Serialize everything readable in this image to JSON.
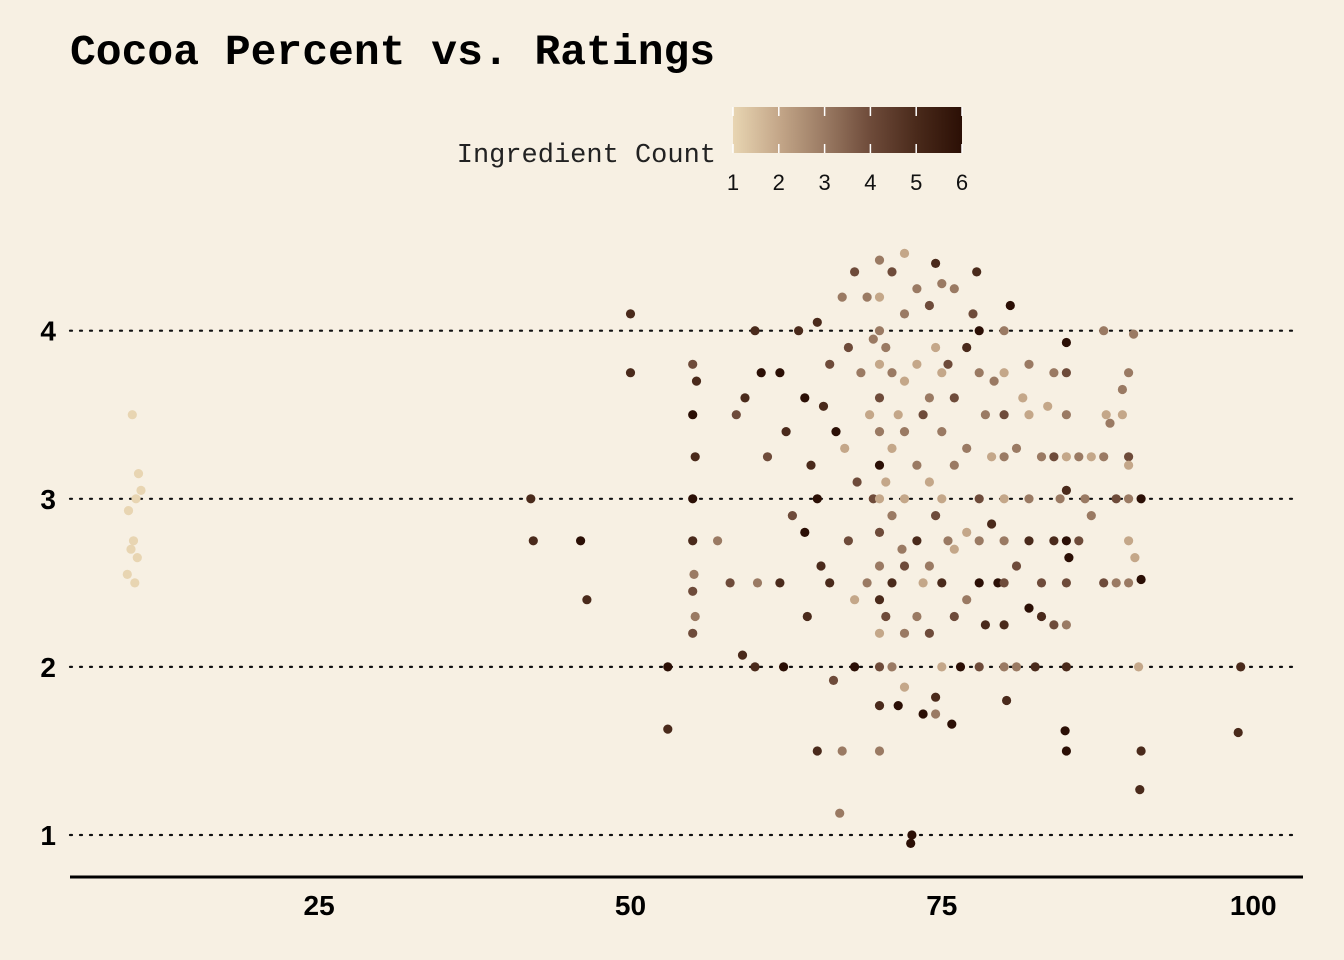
{
  "chart_data": {
    "type": "scatter",
    "title": "Cocoa Percent vs. Ratings",
    "xlabel": "",
    "ylabel": "",
    "xlim": [
      5,
      104
    ],
    "ylim": [
      0.78,
      4.48
    ],
    "x_ticks": [
      25,
      50,
      75,
      100
    ],
    "y_ticks": [
      1,
      2,
      3,
      4
    ],
    "grid": {
      "horizontal": "dotted",
      "vertical": "none"
    },
    "legend": {
      "title": "Ingredient Count",
      "position": "top",
      "type": "colorbar",
      "range": [
        1,
        6
      ],
      "ticks": [
        1,
        2,
        3,
        4,
        5,
        6
      ],
      "colors": [
        "#e8d5b2",
        "#c4a789",
        "#9a7a63",
        "#6e4b3a",
        "#4a2a1b",
        "#2b0f05"
      ]
    },
    "clusters_note": "jittered points; x = cocoa percent, y = rating, color = ingredient count",
    "series": [
      {
        "points": [
          [
            10,
            3.5,
            1
          ],
          [
            10.5,
            3.15,
            1
          ],
          [
            10.7,
            3.05,
            1
          ],
          [
            10.3,
            3.0,
            1
          ],
          [
            9.7,
            2.93,
            1
          ],
          [
            10.1,
            2.75,
            1
          ],
          [
            9.9,
            2.7,
            1
          ],
          [
            10.4,
            2.65,
            1
          ],
          [
            9.6,
            2.55,
            1
          ],
          [
            10.2,
            2.5,
            1
          ],
          [
            42,
            3.0,
            5
          ],
          [
            42.2,
            2.75,
            5
          ],
          [
            46,
            2.75,
            6
          ],
          [
            46.5,
            2.4,
            5
          ],
          [
            50,
            4.1,
            5
          ],
          [
            50,
            3.75,
            5
          ],
          [
            53,
            2.0,
            6
          ],
          [
            53,
            1.63,
            5
          ],
          [
            55,
            3.8,
            4
          ],
          [
            55.3,
            3.7,
            5
          ],
          [
            55,
            3.5,
            6
          ],
          [
            55.2,
            3.25,
            5
          ],
          [
            55,
            3.0,
            6
          ],
          [
            55,
            2.75,
            5
          ],
          [
            55.1,
            2.55,
            3
          ],
          [
            55,
            2.45,
            4
          ],
          [
            55.2,
            2.3,
            3
          ],
          [
            55,
            2.2,
            4
          ],
          [
            57,
            2.75,
            3
          ],
          [
            58,
            2.5,
            4
          ],
          [
            59,
            2.07,
            5
          ],
          [
            58.5,
            3.5,
            4
          ],
          [
            59.2,
            3.6,
            5
          ],
          [
            60,
            4.0,
            5
          ],
          [
            60.5,
            3.75,
            6
          ],
          [
            61,
            3.25,
            4
          ],
          [
            60.2,
            2.5,
            3
          ],
          [
            60,
            2.0,
            5
          ],
          [
            62,
            3.75,
            6
          ],
          [
            62.5,
            3.4,
            5
          ],
          [
            63,
            2.9,
            4
          ],
          [
            62,
            2.5,
            5
          ],
          [
            62.3,
            2.0,
            6
          ],
          [
            63.5,
            4.0,
            5
          ],
          [
            64,
            3.6,
            6
          ],
          [
            64.5,
            3.2,
            5
          ],
          [
            64,
            2.8,
            6
          ],
          [
            64.2,
            2.3,
            5
          ],
          [
            65,
            4.05,
            5
          ],
          [
            65.5,
            3.55,
            5
          ],
          [
            65,
            3.0,
            6
          ],
          [
            65.3,
            2.6,
            5
          ],
          [
            65,
            1.5,
            5
          ],
          [
            66,
            3.8,
            4
          ],
          [
            66.5,
            3.4,
            6
          ],
          [
            66,
            2.5,
            5
          ],
          [
            66.3,
            1.92,
            4
          ],
          [
            66.8,
            1.13,
            3
          ],
          [
            67,
            1.5,
            3
          ],
          [
            67,
            4.2,
            3
          ],
          [
            67.5,
            3.9,
            4
          ],
          [
            67.2,
            3.3,
            2
          ],
          [
            67.5,
            2.75,
            4
          ],
          [
            68,
            4.35,
            4
          ],
          [
            68.5,
            3.75,
            3
          ],
          [
            68.2,
            3.1,
            4
          ],
          [
            68,
            2.4,
            2
          ],
          [
            68,
            2.0,
            6
          ],
          [
            69,
            4.2,
            3
          ],
          [
            69.5,
            3.95,
            3
          ],
          [
            69.2,
            3.5,
            2
          ],
          [
            69.5,
            3.0,
            4
          ],
          [
            69,
            2.5,
            3
          ],
          [
            70,
            4.42,
            3
          ],
          [
            70,
            4.2,
            2
          ],
          [
            70,
            4.0,
            3
          ],
          [
            70,
            3.8,
            2
          ],
          [
            70,
            3.6,
            4
          ],
          [
            70,
            3.4,
            3
          ],
          [
            70,
            3.2,
            6
          ],
          [
            70,
            3.0,
            2
          ],
          [
            70,
            2.8,
            4
          ],
          [
            70,
            2.6,
            3
          ],
          [
            70,
            2.4,
            5
          ],
          [
            70,
            2.2,
            2
          ],
          [
            70,
            2.0,
            4
          ],
          [
            70,
            1.77,
            5
          ],
          [
            70,
            1.5,
            3
          ],
          [
            70.5,
            3.9,
            3
          ],
          [
            70.5,
            3.1,
            2
          ],
          [
            70.5,
            2.3,
            4
          ],
          [
            71,
            4.35,
            4
          ],
          [
            71,
            3.75,
            3
          ],
          [
            71,
            3.3,
            2
          ],
          [
            71,
            2.9,
            3
          ],
          [
            71,
            2.5,
            5
          ],
          [
            71,
            2.0,
            3
          ],
          [
            71.5,
            1.77,
            6
          ],
          [
            71.5,
            3.5,
            2
          ],
          [
            71.8,
            2.7,
            3
          ],
          [
            72,
            4.46,
            2
          ],
          [
            72,
            4.1,
            3
          ],
          [
            72,
            3.7,
            2
          ],
          [
            72,
            3.4,
            3
          ],
          [
            72,
            3.0,
            2
          ],
          [
            72,
            2.6,
            4
          ],
          [
            72,
            2.2,
            3
          ],
          [
            72,
            1.88,
            2
          ],
          [
            72.5,
            0.95,
            6
          ],
          [
            72.6,
            1.0,
            6
          ],
          [
            73,
            4.25,
            3
          ],
          [
            73,
            3.8,
            2
          ],
          [
            73,
            3.2,
            3
          ],
          [
            73,
            2.75,
            5
          ],
          [
            73,
            2.3,
            3
          ],
          [
            73.5,
            3.5,
            4
          ],
          [
            73.5,
            2.5,
            2
          ],
          [
            73.5,
            1.72,
            6
          ],
          [
            74,
            4.15,
            4
          ],
          [
            74,
            3.6,
            3
          ],
          [
            74,
            3.1,
            2
          ],
          [
            74,
            2.6,
            3
          ],
          [
            74,
            2.2,
            4
          ],
          [
            74.5,
            4.4,
            5
          ],
          [
            74.5,
            3.9,
            2
          ],
          [
            74.5,
            2.9,
            4
          ],
          [
            74.5,
            1.72,
            3
          ],
          [
            74.5,
            1.82,
            5
          ],
          [
            75,
            4.28,
            3
          ],
          [
            75,
            3.75,
            2
          ],
          [
            75,
            3.4,
            3
          ],
          [
            75,
            3.0,
            2
          ],
          [
            75,
            2.5,
            5
          ],
          [
            75,
            2.0,
            2
          ],
          [
            75.5,
            3.8,
            4
          ],
          [
            75.5,
            2.75,
            3
          ],
          [
            75.8,
            1.66,
            6
          ],
          [
            76,
            4.25,
            3
          ],
          [
            76,
            3.6,
            4
          ],
          [
            76,
            3.2,
            3
          ],
          [
            76,
            2.7,
            2
          ],
          [
            76,
            2.3,
            4
          ],
          [
            76.5,
            2.0,
            6
          ],
          [
            77,
            3.9,
            5
          ],
          [
            77,
            3.3,
            3
          ],
          [
            77,
            2.8,
            2
          ],
          [
            77,
            2.4,
            3
          ],
          [
            77.5,
            4.1,
            4
          ],
          [
            77.8,
            4.35,
            5
          ],
          [
            78,
            4.0,
            6
          ],
          [
            78,
            3.75,
            3
          ],
          [
            78,
            3.0,
            4
          ],
          [
            78,
            2.75,
            3
          ],
          [
            78,
            2.5,
            6
          ],
          [
            78,
            2.0,
            4
          ],
          [
            78.5,
            3.5,
            3
          ],
          [
            78.5,
            2.25,
            5
          ],
          [
            79,
            3.25,
            2
          ],
          [
            79,
            2.85,
            5
          ],
          [
            79.5,
            2.5,
            6
          ],
          [
            79.2,
            3.7,
            3
          ],
          [
            80,
            4.0,
            3
          ],
          [
            80,
            3.75,
            2
          ],
          [
            80,
            3.5,
            4
          ],
          [
            80,
            3.25,
            3
          ],
          [
            80,
            3.0,
            2
          ],
          [
            80,
            2.75,
            3
          ],
          [
            80,
            2.5,
            4
          ],
          [
            80,
            2.25,
            5
          ],
          [
            80,
            2.0,
            3
          ],
          [
            80.2,
            1.8,
            5
          ],
          [
            80.5,
            4.15,
            6
          ],
          [
            81,
            3.3,
            3
          ],
          [
            81,
            2.6,
            4
          ],
          [
            81,
            2.0,
            3
          ],
          [
            81.5,
            3.6,
            2
          ],
          [
            82,
            3.8,
            3
          ],
          [
            82,
            3.5,
            2
          ],
          [
            82,
            3.0,
            3
          ],
          [
            82,
            2.75,
            5
          ],
          [
            82,
            2.35,
            6
          ],
          [
            82.5,
            2.0,
            5
          ],
          [
            83,
            3.25,
            3
          ],
          [
            83,
            2.5,
            4
          ],
          [
            83,
            2.3,
            5
          ],
          [
            83.5,
            3.55,
            2
          ],
          [
            84,
            3.75,
            3
          ],
          [
            84,
            3.25,
            4
          ],
          [
            84,
            2.75,
            5
          ],
          [
            84,
            2.25,
            4
          ],
          [
            84.5,
            3.0,
            3
          ],
          [
            85,
            3.93,
            6
          ],
          [
            85,
            3.75,
            4
          ],
          [
            85,
            3.5,
            3
          ],
          [
            85,
            3.25,
            2
          ],
          [
            85,
            3.05,
            5
          ],
          [
            85,
            2.75,
            6
          ],
          [
            85,
            2.5,
            4
          ],
          [
            85,
            2.25,
            3
          ],
          [
            85,
            2.0,
            5
          ],
          [
            84.9,
            1.62,
            6
          ],
          [
            85,
            1.5,
            6
          ],
          [
            85.2,
            2.65,
            6
          ],
          [
            86,
            3.25,
            3
          ],
          [
            86,
            2.75,
            4
          ],
          [
            86.5,
            3.0,
            3
          ],
          [
            87,
            3.25,
            2
          ],
          [
            87,
            2.9,
            3
          ],
          [
            88,
            4.0,
            3
          ],
          [
            88.2,
            3.5,
            2
          ],
          [
            88,
            3.25,
            3
          ],
          [
            88,
            2.5,
            4
          ],
          [
            88.5,
            3.45,
            3
          ],
          [
            89,
            3.0,
            4
          ],
          [
            89,
            2.5,
            3
          ],
          [
            89.5,
            3.5,
            2
          ],
          [
            89.5,
            3.65,
            3
          ],
          [
            90,
            3.75,
            3
          ],
          [
            90,
            3.25,
            4
          ],
          [
            90,
            3.2,
            2
          ],
          [
            90,
            3.0,
            3
          ],
          [
            90,
            2.75,
            2
          ],
          [
            90,
            2.5,
            3
          ],
          [
            90.5,
            2.65,
            2
          ],
          [
            90.4,
            3.98,
            3
          ],
          [
            90.8,
            2.0,
            2
          ],
          [
            91,
            3.0,
            6
          ],
          [
            91,
            2.52,
            6
          ],
          [
            91,
            1.5,
            5
          ],
          [
            90.9,
            1.27,
            5
          ],
          [
            99,
            2.0,
            5
          ],
          [
            98.8,
            1.61,
            5
          ]
        ]
      }
    ]
  }
}
